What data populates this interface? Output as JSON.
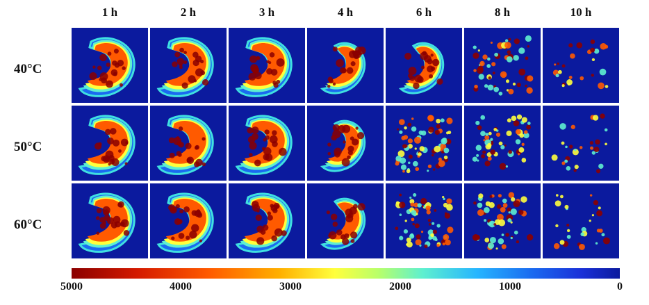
{
  "columns": [
    "1 h",
    "2 h",
    "3 h",
    "4 h",
    "6 h",
    "8 h",
    "10 h"
  ],
  "rows": [
    "40°C",
    "50°C",
    "60°C"
  ],
  "colorbar": {
    "ticks": [
      "5000",
      "4000",
      "3000",
      "2000",
      "1000",
      "0"
    ],
    "colors": [
      "#8b0000",
      "#ff5a00",
      "#ffff3c",
      "#5ef0cf",
      "#1a6af0",
      "#0b1a9e"
    ]
  }
}
